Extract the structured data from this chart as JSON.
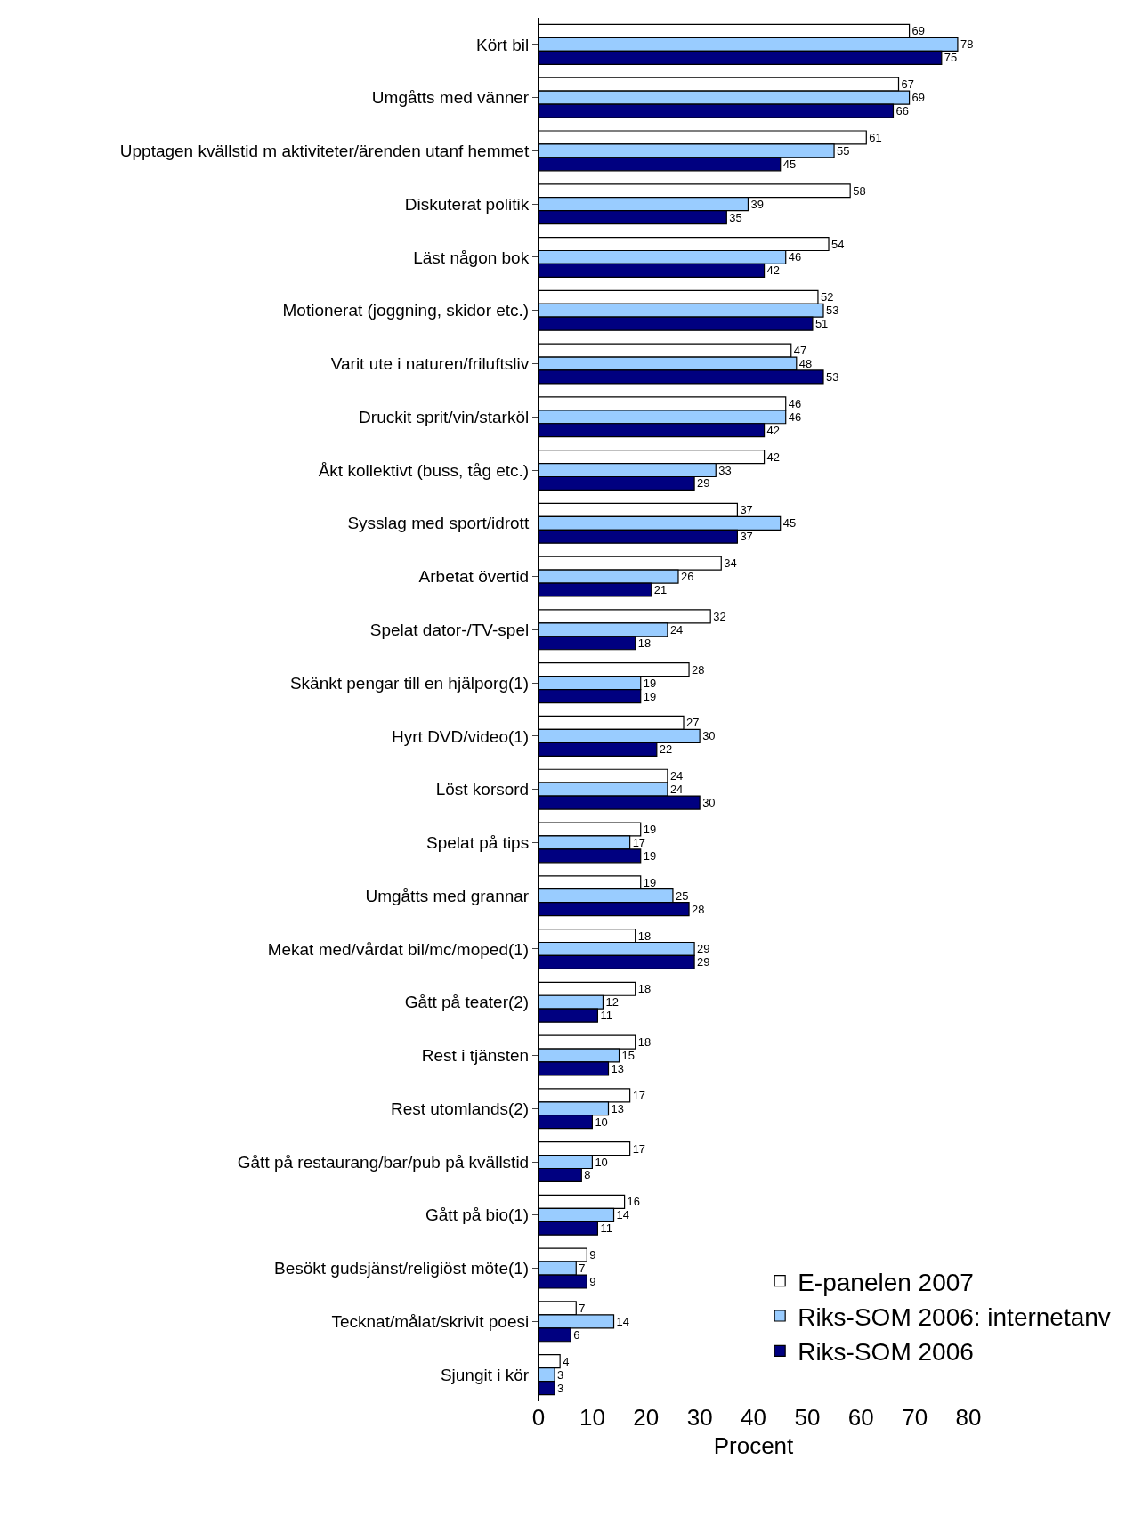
{
  "chart_data": {
    "type": "bar",
    "orientation": "horizontal",
    "xlabel": "Procent",
    "categories": [
      "Kört bil",
      "Umgåtts med vänner",
      "Upptagen kvällstid m aktiviteter/ärenden utanf hemmet",
      "Diskuterat politik",
      "Läst någon bok",
      "Motionerat (joggning, skidor etc.)",
      "Varit ute i naturen/friluftsliv",
      "Druckit sprit/vin/starköl",
      "Åkt kollektivt (buss, tåg etc.)",
      "Sysslag med sport/idrott",
      "Arbetat övertid",
      "Spelat dator-/TV-spel",
      "Skänkt pengar till en hjälporg(1)",
      "Hyrt DVD/video(1)",
      "Löst korsord",
      "Spelat på tips",
      "Umgåtts med grannar",
      "Mekat med/vårdat bil/mc/moped(1)",
      "Gått på teater(2)",
      "Rest i tjänsten",
      "Rest utomlands(2)",
      "Gått på restaurang/bar/pub på kvällstid",
      "Gått på bio(1)",
      "Besökt gudsjänst/religiöst möte(1)",
      "Tecknat/målat/skrivit poesi",
      "Sjungit i kör"
    ],
    "series": [
      {
        "name": "E-panelen 2007",
        "color": "#ffffff",
        "values": [
          69,
          67,
          61,
          58,
          54,
          52,
          47,
          46,
          42,
          37,
          34,
          32,
          28,
          27,
          24,
          19,
          19,
          18,
          18,
          18,
          17,
          17,
          16,
          9,
          7,
          4
        ]
      },
      {
        "name": "Riks-SOM 2006: internetanv",
        "color": "#99ccff",
        "values": [
          78,
          69,
          55,
          39,
          46,
          53,
          48,
          46,
          33,
          45,
          26,
          24,
          19,
          30,
          24,
          17,
          25,
          29,
          12,
          15,
          13,
          10,
          14,
          7,
          14,
          3
        ]
      },
      {
        "name": "Riks-SOM 2006",
        "color": "#000080",
        "values": [
          75,
          66,
          45,
          35,
          42,
          51,
          53,
          42,
          29,
          37,
          21,
          18,
          19,
          22,
          30,
          19,
          28,
          29,
          11,
          13,
          10,
          8,
          11,
          9,
          6,
          3
        ]
      }
    ],
    "xlim": [
      0,
      80
    ],
    "xticks": [
      0,
      10,
      20,
      30,
      40,
      50,
      60,
      70,
      80
    ],
    "grid": false,
    "legend": "bottom right",
    "data_labels": true
  }
}
